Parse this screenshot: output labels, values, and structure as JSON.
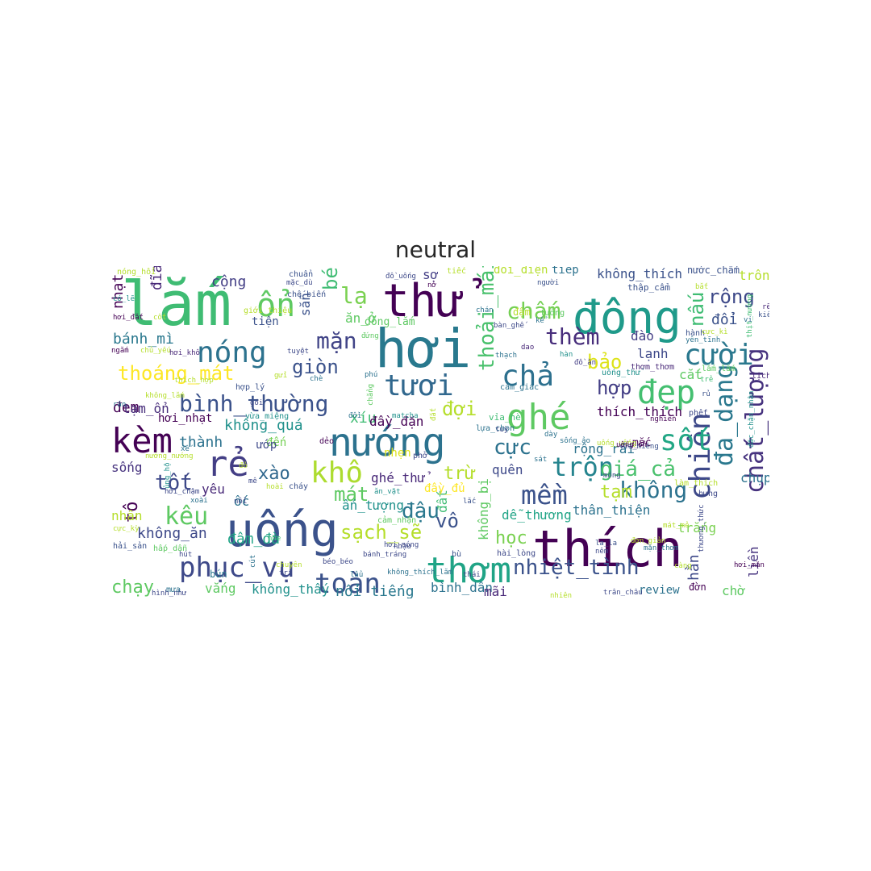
{
  "title": "neutral",
  "colors": {
    "background": "#ffffff",
    "title": "#262626"
  },
  "words": [
    {
      "text": "lắm",
      "c": "#3fbc73"
    },
    {
      "text": "hơi",
      "c": "#29798e"
    },
    {
      "text": "thử",
      "c": "#440154"
    },
    {
      "text": "đông",
      "c": "#1f9a8a"
    },
    {
      "text": "thích",
      "c": "#440154"
    },
    {
      "text": "nướng",
      "c": "#2c728e"
    },
    {
      "text": "uống",
      "c": "#3b528b"
    },
    {
      "text": "ghé",
      "c": "#5ec962"
    },
    {
      "text": "ổn",
      "c": "#5ec962"
    },
    {
      "text": "kèm",
      "c": "#440154"
    },
    {
      "text": "rẻ",
      "c": "#433e85"
    },
    {
      "text": "thơm",
      "c": "#20a486"
    },
    {
      "text": "cười",
      "c": "#2a788e"
    },
    {
      "text": "nóng",
      "c": "#2c728e"
    },
    {
      "text": "tươi",
      "c": "#31688e"
    },
    {
      "text": "chả",
      "c": "#2d708e"
    },
    {
      "text": "đẹp",
      "c": "#44bf70"
    },
    {
      "text": "chiên",
      "c": "#3e4989"
    },
    {
      "text": "chất_lượng",
      "c": "#46327e"
    },
    {
      "text": "mềm",
      "c": "#3b528b"
    },
    {
      "text": "khô",
      "c": "#addc30"
    },
    {
      "text": "phục_vụ",
      "c": "#3e4989"
    },
    {
      "text": "toàn",
      "c": "#3b528b"
    },
    {
      "text": "bình_thường",
      "c": "#3b528b"
    },
    {
      "text": "sốt",
      "c": "#22a785"
    },
    {
      "text": "trộn",
      "c": "#25848e"
    },
    {
      "text": "đa_dạng",
      "c": "#2a788e"
    },
    {
      "text": "chấm",
      "c": "#75d054"
    },
    {
      "text": "thèm",
      "c": "#472d7b"
    },
    {
      "text": "không",
      "c": "#2c728e"
    },
    {
      "text": "nhiệt_tình",
      "c": "#3b528b"
    },
    {
      "text": "giá_cả",
      "c": "#4ac16d"
    },
    {
      "text": "cực",
      "c": "#2c728e"
    },
    {
      "text": "đợi",
      "c": "#b5de2b"
    },
    {
      "text": "kêu",
      "c": "#5ec962"
    },
    {
      "text": "tốt",
      "c": "#3e4989"
    },
    {
      "text": "thoáng_mát",
      "c": "#fde725"
    },
    {
      "text": "mặn",
      "c": "#414487"
    },
    {
      "text": "lạ",
      "c": "#7ad151"
    },
    {
      "text": "béo",
      "c": "#3fbc73"
    },
    {
      "text": "giòn",
      "c": "#3b528b"
    },
    {
      "text": "thoải_mái",
      "c": "#4ac16d"
    },
    {
      "text": "nấu",
      "c": "#3fbc73"
    },
    {
      "text": "rộng",
      "c": "#3e4989"
    },
    {
      "text": "hợp",
      "c": "#433e85"
    },
    {
      "text": "bảo",
      "c": "#dde318"
    },
    {
      "text": "đậu",
      "c": "#2a788e"
    },
    {
      "text": "mát",
      "c": "#5ec962"
    },
    {
      "text": "sạch_sẽ",
      "c": "#b5de2b"
    },
    {
      "text": "học",
      "c": "#7ad151"
    },
    {
      "text": "chạy",
      "c": "#5ec962"
    },
    {
      "text": "xào",
      "c": "#31688e"
    },
    {
      "text": "vô",
      "c": "#3b528b"
    },
    {
      "text": "tô",
      "c": "#440154"
    },
    {
      "text": "trừ",
      "c": "#b5de2b"
    },
    {
      "text": "tạm",
      "c": "#b5de2b"
    },
    {
      "text": "cộng",
      "c": "#433e85"
    },
    {
      "text": "bánh_mì",
      "c": "#2a788e"
    },
    {
      "text": "không_thích",
      "c": "#3b528b"
    },
    {
      "text": "trông",
      "c": "#b5de2b"
    },
    {
      "text": "đổi",
      "c": "#3b528b"
    },
    {
      "text": "đào",
      "c": "#433e85"
    },
    {
      "text": "lạnh",
      "c": "#3e4989"
    },
    {
      "text": "cắt",
      "c": "#5ec962"
    },
    {
      "text": "hằn",
      "c": "#3e4989"
    },
    {
      "text": "liền",
      "c": "#46337f"
    },
    {
      "text": "đem",
      "c": "#440154"
    },
    {
      "text": "thành",
      "c": "#2c728e"
    },
    {
      "text": "không_quá",
      "c": "#21918c"
    },
    {
      "text": "xíu",
      "c": "#3fbc73"
    },
    {
      "text": "sợ",
      "c": "#433e85"
    },
    {
      "text": "nhạt",
      "c": "#440154"
    },
    {
      "text": "đĩa",
      "c": "#482878"
    },
    {
      "text": "sống",
      "c": "#46327e"
    },
    {
      "text": "sẵn",
      "c": "#3b528b"
    },
    {
      "text": "tạm_ổn",
      "c": "#472d7b"
    },
    {
      "text": "ăn_ở",
      "c": "#5ec962"
    },
    {
      "text": "đầy_đặn",
      "c": "#440154"
    },
    {
      "text": "ghé_thử",
      "c": "#482878"
    },
    {
      "text": "quên",
      "c": "#3e4989"
    },
    {
      "text": "thân_thiện",
      "c": "#2c728e"
    },
    {
      "text": "dễ_thương",
      "c": "#20a486"
    },
    {
      "text": "trắng",
      "c": "#7ad151"
    },
    {
      "text": "rộng_rãi",
      "c": "#2c728e"
    },
    {
      "text": "thích_thích",
      "c": "#440154"
    },
    {
      "text": "chụp",
      "c": "#2c728e"
    },
    {
      "text": "không_ăn",
      "c": "#3e4989"
    },
    {
      "text": "đậm_đà",
      "c": "#20a486"
    },
    {
      "text": "nguyên",
      "c": "#b5de2b"
    },
    {
      "text": "vắng",
      "c": "#5ec962"
    },
    {
      "text": "không_thấy",
      "c": "#21918c"
    },
    {
      "text": "nổi_tiếng",
      "c": "#2a788e"
    },
    {
      "text": "bình_dân",
      "c": "#2c728e"
    },
    {
      "text": "mãi",
      "c": "#482878"
    },
    {
      "text": "review",
      "c": "#2c728e"
    },
    {
      "text": "chờ",
      "c": "#5ec962"
    },
    {
      "text": "nhân",
      "c": "#b5de2b"
    },
    {
      "text": "yêu",
      "c": "#482878"
    },
    {
      "text": "ốc",
      "c": "#2c728e"
    },
    {
      "text": "ấn_tượng",
      "c": "#21918c"
    },
    {
      "text": "đất",
      "c": "#3fbc73"
    },
    {
      "text": "không_bị",
      "c": "#5ec962"
    },
    {
      "text": "đến",
      "c": "#75d054"
    },
    {
      "text": "ướp",
      "c": "#3e4989"
    },
    {
      "text": "tiện",
      "c": "#3b528b"
    },
    {
      "text": "nhẹn",
      "c": "#dde318"
    },
    {
      "text": "đầy_đủ",
      "c": "#fde725"
    },
    {
      "text": "hơi_nhạt",
      "c": "#440154"
    },
    {
      "text": "dẻo",
      "c": "#440154"
    },
    {
      "text": "mắc",
      "c": "#440154"
    },
    {
      "text": "vừa_miệng",
      "c": "#21918c"
    },
    {
      "text": "bún",
      "c": "#2a788e"
    },
    {
      "text": "nóng_hổi",
      "c": "#b5de2b"
    },
    {
      "text": "chuẩn",
      "c": "#3b528b"
    },
    {
      "text": "đồ_uống",
      "c": "#3e4989"
    },
    {
      "text": "tiếc",
      "c": "#b5de2b"
    },
    {
      "text": "đối_diện",
      "c": "#b5de2b"
    },
    {
      "text": "tiếp",
      "c": "#2c728e"
    },
    {
      "text": "nước_chấm",
      "c": "#3b528b"
    },
    {
      "text": "thập_cẩm",
      "c": "#3b528b"
    },
    {
      "text": "nở",
      "c": "#440154"
    },
    {
      "text": "mặc_dù",
      "c": "#3e4989"
    },
    {
      "text": "chế_biến",
      "c": "#3b528b"
    },
    {
      "text": "giới_thiệu",
      "c": "#b5de2b"
    },
    {
      "text": "đứng",
      "c": "#5ec962"
    },
    {
      "text": "đông_lắm",
      "c": "#5ec962"
    },
    {
      "text": "người",
      "c": "#3b528b"
    },
    {
      "text": "tưởng",
      "c": "#5ec962"
    },
    {
      "text": "đậm",
      "c": "#b5de2b"
    },
    {
      "text": "bàn_ghế",
      "c": "#3e4989"
    },
    {
      "text": "chán",
      "c": "#2c728e"
    },
    {
      "text": "kể",
      "c": "#2c728e"
    },
    {
      "text": "hành",
      "c": "#3b528b"
    },
    {
      "text": "yên_tĩnh",
      "c": "#2c728e"
    },
    {
      "text": "cực_kì",
      "c": "#b5de2b"
    },
    {
      "text": "thịt_nướng",
      "c": "#3fbc73"
    },
    {
      "text": "kiếm",
      "c": "#3b528b"
    },
    {
      "text": "rẽ",
      "c": "#482878"
    },
    {
      "text": "vi",
      "c": "#2c728e"
    },
    {
      "text": "bắt",
      "c": "#b5de2b"
    },
    {
      "text": "có_lẽ",
      "c": "#21918c"
    },
    {
      "text": "hơi_đắt",
      "c": "#440154"
    },
    {
      "text": "cốt",
      "c": "#b5de2b"
    },
    {
      "text": "ngắm",
      "c": "#440154"
    },
    {
      "text": "chủ_yếu",
      "c": "#b5de2b"
    },
    {
      "text": "hơi_khô",
      "c": "#482878"
    },
    {
      "text": "tuyệt",
      "c": "#3e4989"
    },
    {
      "text": "gửi",
      "c": "#b5de2b"
    },
    {
      "text": "phú",
      "c": "#2c728e"
    },
    {
      "text": "thạch",
      "c": "#2c728e"
    },
    {
      "text": "dao",
      "c": "#482878"
    },
    {
      "text": "hàn",
      "c": "#21918c"
    },
    {
      "text": "đồ_ăn",
      "c": "#433e85"
    },
    {
      "text": "uống_thử",
      "c": "#21918c"
    },
    {
      "text": "thơm_thơm",
      "c": "#482878"
    },
    {
      "text": "lắm_lắm",
      "c": "#5ec962"
    },
    {
      "text": "lịch_sự",
      "c": "#482878"
    },
    {
      "text": "trẻ",
      "c": "#3fbc73"
    },
    {
      "text": "rủ",
      "c": "#3b528b"
    },
    {
      "text": "phết",
      "c": "#3e4989"
    },
    {
      "text": "nghiền",
      "c": "#440154"
    },
    {
      "text": "đặc_chặn_nhận",
      "c": "#21918c"
    },
    {
      "text": "hợp_lý",
      "c": "#3b528b"
    },
    {
      "text": "gói",
      "c": "#3e4989"
    },
    {
      "text": "rán",
      "c": "#2c728e"
    },
    {
      "text": "không_lắm",
      "c": "#b5de2b"
    },
    {
      "text": "thích_hợp",
      "c": "#b5de2b"
    },
    {
      "text": "cảm_giác",
      "c": "#2c728e"
    },
    {
      "text": "lựa_chọn",
      "c": "#2c728e"
    },
    {
      "text": "vỉa_hè",
      "c": "#3fbc73"
    },
    {
      "text": "tuỳ",
      "c": "#3e4989"
    },
    {
      "text": "dày",
      "c": "#2c728e"
    },
    {
      "text": "sống_ảo",
      "c": "#2c728e"
    },
    {
      "text": "uống_uống",
      "c": "#b5de2b"
    },
    {
      "text": "vừa_miêng",
      "c": "#3b528b"
    },
    {
      "text": "chè",
      "c": "#2c728e"
    },
    {
      "text": "đồi",
      "c": "#2c728e"
    },
    {
      "text": "matcha",
      "c": "#21918c"
    },
    {
      "text": "đắt",
      "c": "#b5de2b"
    },
    {
      "text": "xế",
      "c": "#2c728e"
    },
    {
      "text": "nướng_nướng",
      "c": "#b5de2b"
    },
    {
      "text": "đỏ",
      "c": "#b5de2b"
    },
    {
      "text": "phở",
      "c": "#3e4989"
    },
    {
      "text": "sát",
      "c": "#2c728e"
    },
    {
      "text": "uống_ổn",
      "c": "#440154"
    },
    {
      "text": "mê",
      "c": "#3e4989"
    },
    {
      "text": "hoài",
      "c": "#b5de2b"
    },
    {
      "text": "cháy",
      "c": "#3b528b"
    },
    {
      "text": "ủng_hộ",
      "c": "#21918c"
    },
    {
      "text": "hơi_chậm",
      "c": "#3e4989"
    },
    {
      "text": "xoài",
      "c": "#2c728e"
    },
    {
      "text": "nổi",
      "c": "#3e4989"
    },
    {
      "text": "ăn_vặt",
      "c": "#21918c"
    },
    {
      "text": "lắc",
      "c": "#3b528b"
    },
    {
      "text": "móng",
      "c": "#3e4989"
    },
    {
      "text": "làm_thích",
      "c": "#b5de2b"
    },
    {
      "text": "bưng",
      "c": "#3e4989"
    },
    {
      "text": "cực_kỳ",
      "c": "#b5de2b"
    },
    {
      "text": "hải_sản",
      "c": "#3b528b"
    },
    {
      "text": "hấp_dẫn",
      "c": "#5ec962"
    },
    {
      "text": "nhe",
      "c": "#3fbc73"
    },
    {
      "text": "hơi_nóng",
      "c": "#3e4989"
    },
    {
      "text": "nhậu",
      "c": "#3e4989"
    },
    {
      "text": "cảm_nhận",
      "c": "#5ec962"
    },
    {
      "text": "mát_mẻ",
      "c": "#b5de2b"
    },
    {
      "text": "đờn",
      "c": "#440154"
    },
    {
      "text": "thương_thức",
      "c": "#3e4989"
    },
    {
      "text": "hút",
      "c": "#3e4989"
    },
    {
      "text": "bánh_tráng",
      "c": "#3e4989"
    },
    {
      "text": "hài_lòng",
      "c": "#3e4989"
    },
    {
      "text": "nêm",
      "c": "#3e4989"
    },
    {
      "text": "la_la",
      "c": "#3b528b"
    },
    {
      "text": "mặn_thơm",
      "c": "#2c728e"
    },
    {
      "text": "đơn_giản",
      "c": "#b5de2b"
    },
    {
      "text": "bù",
      "c": "#3b528b"
    },
    {
      "text": "hơi_mặn",
      "c": "#440154"
    },
    {
      "text": "mưa",
      "c": "#2c728e"
    },
    {
      "text": "hình_như",
      "c": "#3e4989"
    },
    {
      "text": "trí",
      "c": "#3e4989"
    },
    {
      "text": "lẩu",
      "c": "#2c728e"
    },
    {
      "text": "không_thích_lắm",
      "c": "#2c728e"
    },
    {
      "text": "nhiên",
      "c": "#b5de2b"
    },
    {
      "text": "trân_châu",
      "c": "#3e4989"
    },
    {
      "text": "chuyên",
      "c": "#b5de2b"
    },
    {
      "text": "béo_béo",
      "c": "#3e4989"
    },
    {
      "text": "cút",
      "c": "#2c728e"
    },
    {
      "text": "chẳng",
      "c": "#5ec962"
    },
    {
      "text": "thái",
      "c": "#3e4989"
    },
    {
      "text": "càng",
      "c": "#b5de2b"
    }
  ]
}
